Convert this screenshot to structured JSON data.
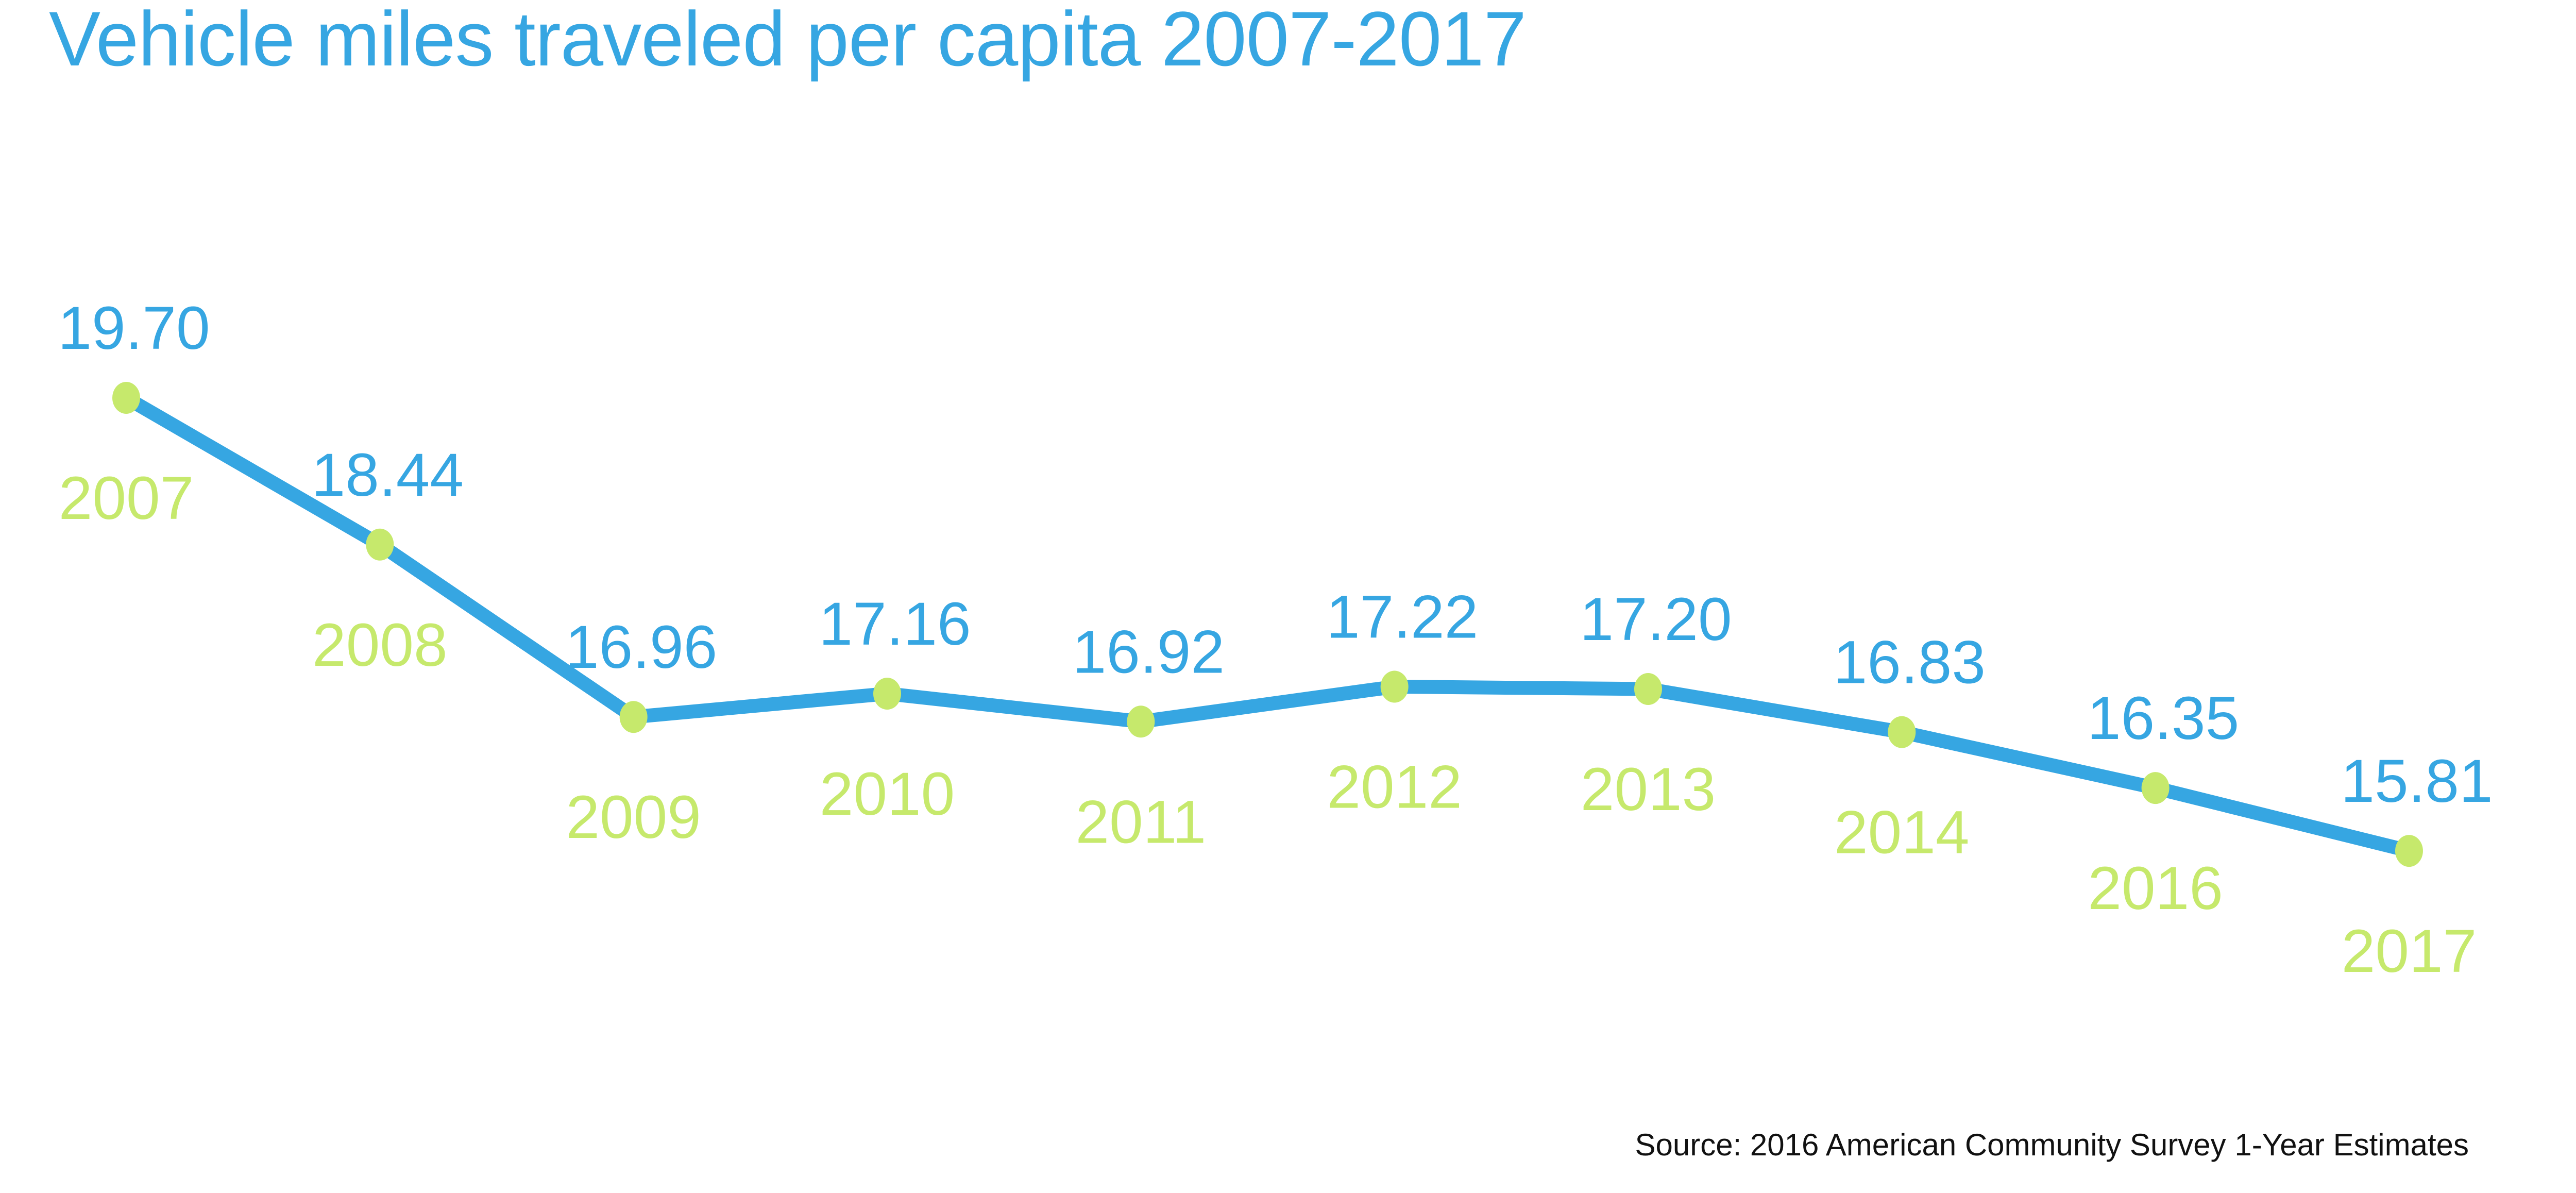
{
  "title": "Vehicle miles traveled per capita 2007-2017",
  "source": "Source: 2016 American Community Survey 1-Year Estimates",
  "colors": {
    "accent_blue": "#36a6e2",
    "accent_green": "#c6e96c",
    "source_text": "#111111",
    "background": "#ffffff"
  },
  "chart_data": {
    "type": "line",
    "title": "Vehicle miles traveled per capita 2007-2017",
    "xlabel": "",
    "ylabel": "",
    "categories": [
      "2007",
      "2008",
      "2009",
      "2010",
      "2011",
      "2012",
      "2013",
      "2014",
      "2016",
      "2017"
    ],
    "values": [
      19.7,
      18.44,
      16.96,
      17.16,
      16.92,
      17.22,
      17.2,
      16.83,
      16.35,
      15.81
    ],
    "value_labels": [
      "19.70",
      "18.44",
      "16.96",
      "17.16",
      "16.92",
      "17.22",
      "17.20",
      "16.83",
      "16.35",
      "15.81"
    ],
    "ylim": [
      15.0,
      20.5
    ],
    "grid": false,
    "legend": false,
    "axes_visible": false,
    "annotations": "blue value label above each point, green year label below each point; 2015 absent from series",
    "source_note": "Source: 2016 American Community Survey 1-Year Estimates"
  }
}
